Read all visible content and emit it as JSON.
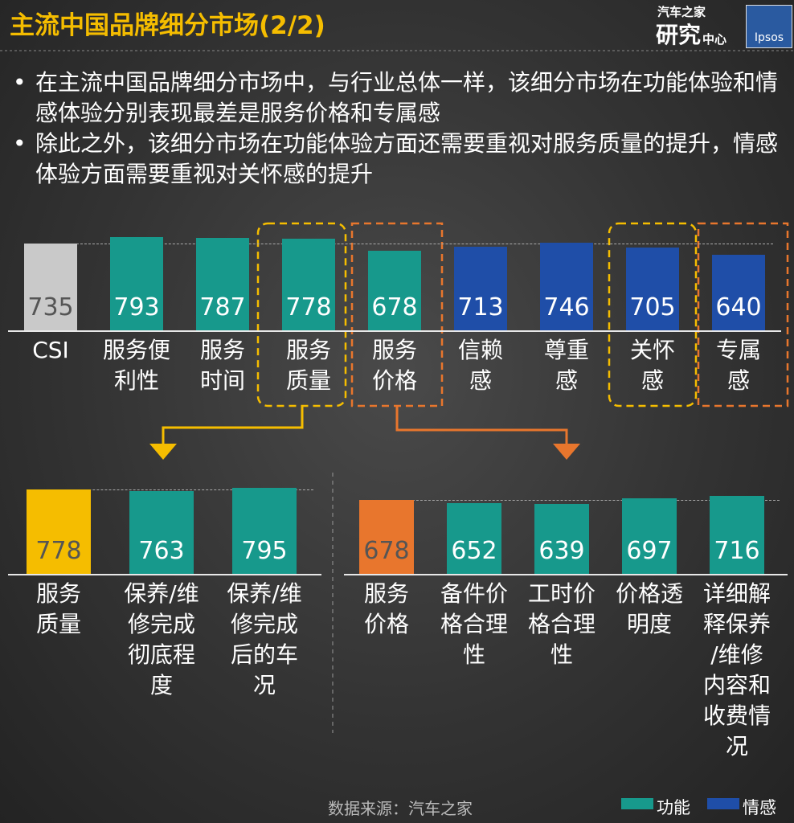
{
  "header": {
    "title": "主流中国品牌细分市场(2/2)",
    "logo_top": "汽车之家",
    "logo_main": "研究",
    "logo_sub": "中心",
    "logo_brand": "Ipsos"
  },
  "bullets": [
    "在主流中国品牌细分市场中，与行业总体一样，该细分市场在功能体验和情感体验分别表现最差是服务价格和专属感",
    "除此之外，该细分市场在功能体验方面还需要重视对服务质量的提升，情感体验方面需要重视对关怀感的提升"
  ],
  "chart_data": [
    {
      "type": "bar",
      "categories": [
        "CSI",
        "服务便\n利性",
        "服务\n时间",
        "服务\n质量",
        "服务\n价格",
        "信赖\n感",
        "尊重\n感",
        "关怀\n感",
        "专属\n感"
      ],
      "values": [
        735,
        793,
        787,
        778,
        678,
        713,
        746,
        705,
        640
      ],
      "colors": [
        "#c9c9c9",
        "#17998c",
        "#17998c",
        "#17998c",
        "#17998c",
        "#1f4ea8",
        "#1f4ea8",
        "#1f4ea8",
        "#1f4ea8"
      ]
    },
    {
      "type": "bar",
      "categories": [
        "服务\n质量",
        "保养/维\n修完成\n彻底程\n度",
        "保养/维\n修完成\n后的车\n况"
      ],
      "values": [
        778,
        763,
        795
      ],
      "colors": [
        "#f5bd00",
        "#17998c",
        "#17998c"
      ]
    },
    {
      "type": "bar",
      "categories": [
        "服务\n价格",
        "备件价\n格合理\n性",
        "工时价\n格合理\n性",
        "价格透\n明度",
        "详细解\n释保养\n/维修\n内容和\n收费情\n况"
      ],
      "values": [
        678,
        652,
        639,
        697,
        716
      ],
      "colors": [
        "#e8762d",
        "#17998c",
        "#17998c",
        "#17998c",
        "#17998c"
      ]
    }
  ],
  "source": "数据来源：汽车之家",
  "legend": [
    {
      "name": "功能",
      "color": "#17998c"
    },
    {
      "name": "情感",
      "color": "#1f4ea8"
    }
  ]
}
